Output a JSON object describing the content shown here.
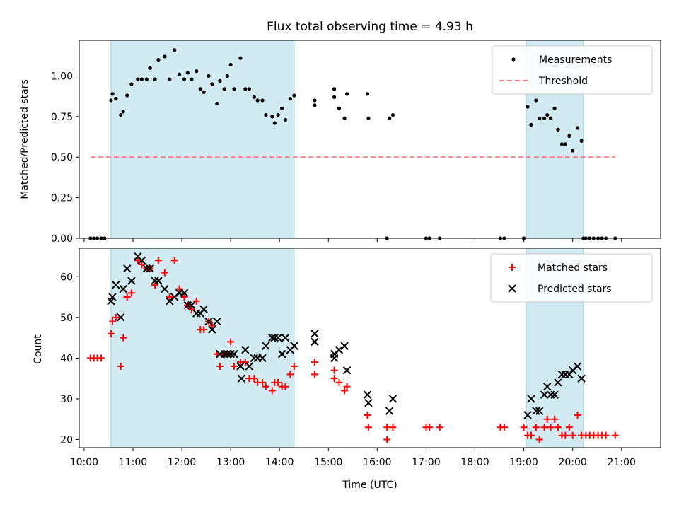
{
  "figure": {
    "title": "Flux total observing time = 4.93 h"
  },
  "chart_data": [
    {
      "type": "scatter",
      "ylabel": "Matched/Predicted stars",
      "xlabel": "",
      "x_unit": "hours UTC",
      "xlim": [
        9.9,
        21.8
      ],
      "ylim": [
        0.0,
        1.22
      ],
      "yticks": [
        0.0,
        0.25,
        0.5,
        0.75,
        1.0
      ],
      "ytick_labels": [
        "0.00",
        "0.25",
        "0.50",
        "0.75",
        "1.00"
      ],
      "shaded_spans": [
        [
          10.55,
          14.3
        ],
        [
          19.05,
          20.22
        ]
      ],
      "shade_color": "#add8e6",
      "legend": {
        "position": "top-right",
        "entries": [
          "Measurements",
          "Threshold"
        ]
      },
      "series": [
        {
          "name": "Measurements",
          "color": "#000000",
          "marker": "dot",
          "points": [
            [
              10.13,
              0
            ],
            [
              10.2,
              0
            ],
            [
              10.27,
              0
            ],
            [
              10.35,
              0
            ],
            [
              10.42,
              0
            ],
            [
              10.55,
              0.85
            ],
            [
              10.58,
              0.89
            ],
            [
              10.65,
              0.86
            ],
            [
              10.75,
              0.76
            ],
            [
              10.8,
              0.78
            ],
            [
              10.88,
              0.88
            ],
            [
              10.97,
              0.95
            ],
            [
              11.1,
              0.98
            ],
            [
              11.18,
              0.98
            ],
            [
              11.28,
              0.98
            ],
            [
              11.35,
              1.05
            ],
            [
              11.45,
              0.98
            ],
            [
              11.52,
              1.1
            ],
            [
              11.65,
              1.12
            ],
            [
              11.75,
              0.98
            ],
            [
              11.85,
              1.16
            ],
            [
              11.95,
              1.01
            ],
            [
              12.05,
              0.98
            ],
            [
              12.12,
              1.02
            ],
            [
              12.2,
              0.98
            ],
            [
              12.3,
              1.03
            ],
            [
              12.38,
              0.92
            ],
            [
              12.45,
              0.9
            ],
            [
              12.55,
              1.0
            ],
            [
              12.62,
              0.95
            ],
            [
              12.72,
              0.83
            ],
            [
              12.78,
              0.97
            ],
            [
              12.87,
              0.92
            ],
            [
              12.93,
              1.0
            ],
            [
              13.0,
              1.07
            ],
            [
              13.07,
              0.92
            ],
            [
              13.2,
              1.11
            ],
            [
              13.3,
              0.92
            ],
            [
              13.38,
              0.92
            ],
            [
              13.48,
              0.87
            ],
            [
              13.55,
              0.85
            ],
            [
              13.65,
              0.85
            ],
            [
              13.72,
              0.76
            ],
            [
              13.85,
              0.75
            ],
            [
              13.9,
              0.71
            ],
            [
              13.97,
              0.76
            ],
            [
              14.05,
              0.8
            ],
            [
              14.12,
              0.73
            ],
            [
              14.22,
              0.86
            ],
            [
              14.3,
              0.88
            ],
            [
              14.72,
              0.82
            ],
            [
              14.72,
              0.85
            ],
            [
              15.12,
              0.92
            ],
            [
              15.12,
              0.87
            ],
            [
              15.22,
              0.8
            ],
            [
              15.33,
              0.74
            ],
            [
              15.38,
              0.89
            ],
            [
              15.8,
              0.89
            ],
            [
              15.82,
              0.74
            ],
            [
              16.2,
              0
            ],
            [
              16.25,
              0.74
            ],
            [
              16.32,
              0.76
            ],
            [
              17.0,
              0
            ],
            [
              17.07,
              0
            ],
            [
              17.28,
              0
            ],
            [
              18.52,
              0
            ],
            [
              18.6,
              0
            ],
            [
              19.0,
              0
            ],
            [
              19.08,
              0.81
            ],
            [
              19.15,
              0.7
            ],
            [
              19.25,
              0.85
            ],
            [
              19.32,
              0.74
            ],
            [
              19.42,
              0.74
            ],
            [
              19.48,
              0.76
            ],
            [
              19.55,
              0.74
            ],
            [
              19.63,
              0.8
            ],
            [
              19.7,
              0.67
            ],
            [
              19.78,
              0.58
            ],
            [
              19.85,
              0.58
            ],
            [
              19.93,
              0.63
            ],
            [
              20.0,
              0.54
            ],
            [
              20.1,
              0.68
            ],
            [
              20.18,
              0.6
            ],
            [
              20.22,
              0
            ],
            [
              20.27,
              0
            ],
            [
              20.35,
              0
            ],
            [
              20.43,
              0
            ],
            [
              20.52,
              0
            ],
            [
              20.6,
              0
            ],
            [
              20.68,
              0
            ],
            [
              20.87,
              0
            ]
          ]
        },
        {
          "name": "Threshold",
          "color": "#ff7f7f",
          "style": "dashed",
          "x": [
            10.13,
            20.87
          ],
          "y": [
            0.5,
            0.5
          ]
        }
      ]
    },
    {
      "type": "scatter",
      "ylabel": "Count",
      "xlabel": "Time (UTC)",
      "x_unit": "hours UTC",
      "xlim": [
        9.9,
        21.8
      ],
      "ylim": [
        18,
        67
      ],
      "yticks": [
        20,
        30,
        40,
        50,
        60
      ],
      "ytick_labels": [
        "20",
        "30",
        "40",
        "50",
        "60"
      ],
      "xticks": [
        10,
        11,
        12,
        13,
        14,
        15,
        16,
        17,
        18,
        19,
        20,
        21
      ],
      "xtick_labels": [
        "10:00",
        "11:00",
        "12:00",
        "13:00",
        "14:00",
        "15:00",
        "16:00",
        "17:00",
        "18:00",
        "19:00",
        "20:00",
        "21:00"
      ],
      "shaded_spans": [
        [
          10.55,
          14.3
        ],
        [
          19.05,
          20.22
        ]
      ],
      "shade_color": "#add8e6",
      "legend": {
        "position": "top-right",
        "entries": [
          "Matched stars",
          "Predicted stars"
        ]
      },
      "series": [
        {
          "name": "Matched stars",
          "color": "#ff0000",
          "marker": "+",
          "points": [
            [
              10.13,
              40
            ],
            [
              10.2,
              40
            ],
            [
              10.27,
              40
            ],
            [
              10.35,
              40
            ],
            [
              10.55,
              46
            ],
            [
              10.58,
              49
            ],
            [
              10.65,
              50
            ],
            [
              10.75,
              38
            ],
            [
              10.8,
              45
            ],
            [
              10.88,
              55
            ],
            [
              10.97,
              56
            ],
            [
              11.1,
              64
            ],
            [
              11.18,
              63
            ],
            [
              11.28,
              62
            ],
            [
              11.35,
              62
            ],
            [
              11.45,
              58
            ],
            [
              11.52,
              64
            ],
            [
              11.65,
              61
            ],
            [
              11.75,
              55
            ],
            [
              11.85,
              64
            ],
            [
              11.95,
              57
            ],
            [
              12.05,
              55
            ],
            [
              12.12,
              53
            ],
            [
              12.2,
              52
            ],
            [
              12.3,
              54
            ],
            [
              12.38,
              47
            ],
            [
              12.45,
              47
            ],
            [
              12.55,
              49
            ],
            [
              12.62,
              48
            ],
            [
              12.72,
              41
            ],
            [
              12.78,
              38
            ],
            [
              12.87,
              41
            ],
            [
              12.93,
              41
            ],
            [
              13.0,
              44
            ],
            [
              13.07,
              38
            ],
            [
              13.2,
              39
            ],
            [
              13.3,
              39
            ],
            [
              13.38,
              35
            ],
            [
              13.48,
              35
            ],
            [
              13.55,
              34
            ],
            [
              13.65,
              34
            ],
            [
              13.72,
              33
            ],
            [
              13.85,
              32
            ],
            [
              13.9,
              34
            ],
            [
              13.97,
              34
            ],
            [
              14.05,
              33
            ],
            [
              14.12,
              33
            ],
            [
              14.22,
              36
            ],
            [
              14.3,
              38
            ],
            [
              14.72,
              39
            ],
            [
              14.72,
              36
            ],
            [
              15.12,
              37
            ],
            [
              15.12,
              35
            ],
            [
              15.22,
              34
            ],
            [
              15.33,
              32
            ],
            [
              15.38,
              33
            ],
            [
              15.8,
              26
            ],
            [
              15.82,
              23
            ],
            [
              16.2,
              20
            ],
            [
              16.2,
              23
            ],
            [
              16.32,
              23
            ],
            [
              17.0,
              23
            ],
            [
              17.07,
              23
            ],
            [
              17.28,
              23
            ],
            [
              18.52,
              23
            ],
            [
              18.6,
              23
            ],
            [
              19.0,
              23
            ],
            [
              19.08,
              21
            ],
            [
              19.15,
              21
            ],
            [
              19.25,
              23
            ],
            [
              19.32,
              20
            ],
            [
              19.42,
              23
            ],
            [
              19.48,
              25
            ],
            [
              19.55,
              23
            ],
            [
              19.63,
              25
            ],
            [
              19.7,
              23
            ],
            [
              19.78,
              21
            ],
            [
              19.85,
              21
            ],
            [
              19.93,
              23
            ],
            [
              20.0,
              21
            ],
            [
              20.1,
              26
            ],
            [
              20.18,
              21
            ],
            [
              20.27,
              21
            ],
            [
              20.35,
              21
            ],
            [
              20.43,
              21
            ],
            [
              20.52,
              21
            ],
            [
              20.6,
              21
            ],
            [
              20.68,
              21
            ],
            [
              20.87,
              21
            ]
          ]
        },
        {
          "name": "Predicted stars",
          "color": "#000000",
          "marker": "x",
          "points": [
            [
              10.55,
              54
            ],
            [
              10.58,
              55
            ],
            [
              10.65,
              58
            ],
            [
              10.75,
              50
            ],
            [
              10.8,
              57
            ],
            [
              10.88,
              62
            ],
            [
              10.97,
              59
            ],
            [
              11.1,
              65
            ],
            [
              11.18,
              64
            ],
            [
              11.28,
              62
            ],
            [
              11.35,
              62
            ],
            [
              11.45,
              59
            ],
            [
              11.52,
              59
            ],
            [
              11.65,
              57
            ],
            [
              11.75,
              54
            ],
            [
              11.85,
              55
            ],
            [
              11.95,
              56
            ],
            [
              12.05,
              56
            ],
            [
              12.12,
              53
            ],
            [
              12.2,
              53
            ],
            [
              12.3,
              51
            ],
            [
              12.38,
              51
            ],
            [
              12.45,
              52
            ],
            [
              12.55,
              49
            ],
            [
              12.62,
              47
            ],
            [
              12.72,
              49
            ],
            [
              12.78,
              41
            ],
            [
              12.87,
              41
            ],
            [
              12.93,
              41
            ],
            [
              13.0,
              41
            ],
            [
              13.07,
              41
            ],
            [
              13.2,
              38
            ],
            [
              13.22,
              35
            ],
            [
              13.3,
              42
            ],
            [
              13.38,
              38
            ],
            [
              13.48,
              40
            ],
            [
              13.55,
              40
            ],
            [
              13.65,
              40
            ],
            [
              13.72,
              43
            ],
            [
              13.85,
              45
            ],
            [
              13.9,
              45
            ],
            [
              13.97,
              45
            ],
            [
              14.05,
              41
            ],
            [
              14.12,
              45
            ],
            [
              14.22,
              42
            ],
            [
              14.3,
              43
            ],
            [
              14.72,
              46
            ],
            [
              14.72,
              44
            ],
            [
              15.12,
              40
            ],
            [
              15.12,
              41
            ],
            [
              15.22,
              42
            ],
            [
              15.33,
              43
            ],
            [
              15.38,
              37
            ],
            [
              15.8,
              31
            ],
            [
              15.82,
              29
            ],
            [
              16.25,
              27
            ],
            [
              16.32,
              30
            ],
            [
              19.08,
              26
            ],
            [
              19.15,
              30
            ],
            [
              19.25,
              27
            ],
            [
              19.32,
              27
            ],
            [
              19.42,
              31
            ],
            [
              19.48,
              33
            ],
            [
              19.55,
              31
            ],
            [
              19.63,
              31
            ],
            [
              19.7,
              34
            ],
            [
              19.78,
              36
            ],
            [
              19.85,
              36
            ],
            [
              19.93,
              36
            ],
            [
              20.0,
              37
            ],
            [
              20.1,
              38
            ],
            [
              20.18,
              35
            ]
          ]
        }
      ]
    }
  ]
}
